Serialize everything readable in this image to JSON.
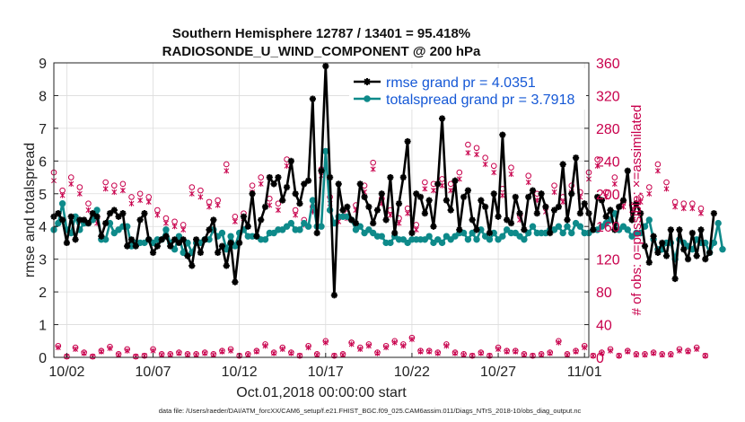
{
  "chart_data": {
    "type": "line",
    "title": "Southern Hemisphere 12787 / 13401 = 95.418%",
    "subtitle": "RADIOSONDE_U_WIND_COMPONENT @ 200 hPa",
    "xlabel": "Oct.01,2018 00:00:00 start",
    "ylabel": "rmse and totalspread",
    "ylabel_right": "# of obs: o=possible; ×=assimilated",
    "footnote": "data file: /Users/raeder/DAI/ATM_forcXX/CAM6_setup/f.e21.FHIST_BGC.f09_025.CAM6assim.011/Diags_NTrS_2018-10/obs_diag_output.nc",
    "xlim": [
      0.5,
      31.5
    ],
    "ylim": [
      0,
      9
    ],
    "ylim_right": [
      0,
      360
    ],
    "yticks": [
      "0",
      "1",
      "2",
      "3",
      "4",
      "5",
      "6",
      "7",
      "8",
      "9"
    ],
    "yticks_right": [
      "0",
      "40",
      "80",
      "120",
      "160",
      "200",
      "240",
      "280",
      "320",
      "360"
    ],
    "xticks": [
      {
        "x": 1.25,
        "label": "10/02"
      },
      {
        "x": 6.25,
        "label": "10/07"
      },
      {
        "x": 11.25,
        "label": "10/12"
      },
      {
        "x": 16.25,
        "label": "10/17"
      },
      {
        "x": 21.25,
        "label": "10/22"
      },
      {
        "x": 26.25,
        "label": "10/27"
      },
      {
        "x": 31.25,
        "label": "11/01"
      }
    ],
    "grid": true,
    "legend_position": "top-right",
    "x_start": 0.5,
    "x_step": 0.25,
    "series": [
      {
        "name": "rmse grand pr = 4.0351",
        "color": "#000000",
        "marker": "star",
        "values": [
          4.3,
          4.4,
          4.2,
          3.5,
          4.3,
          3.6,
          4.2,
          4.2,
          4.1,
          4.4,
          4.3,
          3.7,
          4.1,
          4.4,
          4.5,
          4.3,
          4.4,
          3.4,
          3.6,
          3.4,
          4.2,
          4.4,
          3.6,
          3.2,
          3.4,
          3.6,
          3.7,
          3.4,
          3.6,
          3.5,
          3.6,
          3.1,
          2.8,
          3.6,
          3.2,
          3.6,
          3.9,
          4.2,
          3.2,
          3.4,
          2.8,
          3.5,
          2.3,
          3.5,
          4.3,
          4.0,
          5.0,
          3.7,
          4.2,
          4.6,
          5.5,
          5.3,
          5.5,
          4.8,
          5.2,
          6.0,
          5.0,
          4.7,
          5.3,
          5.4,
          7.9,
          3.8,
          5.7,
          8.9,
          5.5,
          1.9,
          5.3,
          4.5,
          4.6,
          4.2,
          4.1,
          5.3,
          4.9,
          4.6,
          4.1,
          4.5,
          5.0,
          4.2,
          5.5,
          3.8,
          4.7,
          5.5,
          6.6,
          3.8,
          5.0,
          4.9,
          4.4,
          4.8,
          4.0,
          5.3,
          7.3,
          4.8,
          4.5,
          5.4,
          3.9,
          4.9,
          5.1,
          4.2,
          3.9,
          4.8,
          4.6,
          3.8,
          5.0,
          4.3,
          6.8,
          4.2,
          4.1,
          4.9,
          4.4,
          3.9,
          4.9,
          5.1,
          4.4,
          5.0,
          4.6,
          3.8,
          4.5,
          4.6,
          5.9,
          4.2,
          5.0,
          6.1,
          4.4,
          4.7,
          4.4,
          3.9,
          4.9,
          4.8,
          4.3,
          4.5,
          3.9,
          4.6,
          4.8,
          5.7,
          4.2,
          4.7,
          4.4,
          3.4,
          2.9,
          3.7,
          3.2,
          3.5,
          3.1,
          3.9,
          2.4,
          3.9,
          3.3,
          3.0,
          3.8,
          3.1,
          3.9,
          3.0,
          3.2,
          4.4
        ]
      },
      {
        "name": "totalspread grand pr = 3.7918",
        "color": "#0e8a8a",
        "marker": "circle",
        "values": [
          3.9,
          4.1,
          4.7,
          3.9,
          3.8,
          4.3,
          3.9,
          4.1,
          4.1,
          4.2,
          4.5,
          3.6,
          3.6,
          4.1,
          3.8,
          3.9,
          4.0,
          4.0,
          3.4,
          3.5,
          3.5,
          3.5,
          3.6,
          3.5,
          3.6,
          3.6,
          3.9,
          3.5,
          3.3,
          3.7,
          3.2,
          3.5,
          3.2,
          3.5,
          3.5,
          3.6,
          3.6,
          3.9,
          3.7,
          3.8,
          3.3,
          3.7,
          3.4,
          3.8,
          3.9,
          3.7,
          3.7,
          3.7,
          3.6,
          3.6,
          3.8,
          3.8,
          3.9,
          3.9,
          4.0,
          4.1,
          3.9,
          3.9,
          4.1,
          4.0,
          4.8,
          4.0,
          4.0,
          6.3,
          4.5,
          4.1,
          4.3,
          4.3,
          4.3,
          4.2,
          3.9,
          4.0,
          3.8,
          3.9,
          3.8,
          3.7,
          3.7,
          3.5,
          3.5,
          3.7,
          3.6,
          3.6,
          3.5,
          3.6,
          3.6,
          3.6,
          3.6,
          3.7,
          3.5,
          3.6,
          3.5,
          3.7,
          3.6,
          3.7,
          3.8,
          3.8,
          3.6,
          3.8,
          3.6,
          3.9,
          3.7,
          3.6,
          3.8,
          3.6,
          3.7,
          3.9,
          3.8,
          3.8,
          3.7,
          3.6,
          3.8,
          4.0,
          3.8,
          3.8,
          3.8,
          3.9,
          3.9,
          4.0,
          3.8,
          4.0,
          3.8,
          4.1,
          4.0,
          3.8,
          3.8,
          3.9,
          3.9,
          4.0,
          4.1,
          4.2,
          4.4,
          3.9,
          4.0,
          3.9,
          3.7,
          3.8,
          3.8,
          4.0,
          4.2,
          3.6,
          3.3,
          3.3,
          3.5,
          3.5,
          3.0,
          3.6,
          3.5,
          3.4,
          3.3,
          3.6,
          3.5,
          3.5,
          3.2,
          3.5,
          4.1,
          3.3
        ]
      }
    ],
    "obs_possible": {
      "name": "possible",
      "color": "#c8004c",
      "marker": "o",
      "values": [
        226,
        14,
        204,
        1,
        220,
        12,
        208,
        6,
        188,
        1,
        170,
        8,
        214,
        13,
        210,
        4,
        212,
        10,
        196,
        1,
        200,
        2,
        196,
        10,
        180,
        4,
        170,
        4,
        166,
        6,
        162,
        4,
        208,
        4,
        204,
        6,
        190,
        4,
        192,
        8,
        236,
        10,
        172,
        2,
        176,
        4,
        210,
        8,
        220,
        16,
        194,
        6,
        188,
        12,
        242,
        6,
        180,
        2,
        168,
        14,
        184,
        4,
        230,
        20,
        196,
        2,
        172,
        4,
        176,
        18,
        186,
        12,
        210,
        16,
        238,
        6,
        194,
        14,
        180,
        20,
        170,
        16,
        182,
        24,
        162,
        8,
        214,
        8,
        212,
        6,
        218,
        16,
        212,
        6,
        226,
        4,
        260,
        2,
        256,
        6,
        244,
        2,
        234,
        12,
        206,
        8,
        232,
        8,
        174,
        4,
        222,
        2,
        200,
        4,
        184,
        6,
        210,
        20,
        196,
        4,
        210,
        8,
        202,
        14,
        226,
        2,
        242,
        6,
        202,
        10,
        220,
        2,
        190,
        8,
        186,
        4,
        196,
        4,
        208,
        6,
        236,
        4,
        214,
        4,
        190,
        10,
        188,
        8,
        188,
        12,
        182,
        2
      ]
    },
    "obs_assimilated": {
      "name": "assimilated",
      "color": "#c8004c",
      "marker": "x",
      "values": [
        216,
        12,
        198,
        1,
        212,
        10,
        200,
        5,
        180,
        1,
        164,
        7,
        206,
        11,
        202,
        3,
        204,
        8,
        188,
        1,
        192,
        2,
        190,
        8,
        174,
        3,
        164,
        3,
        160,
        5,
        156,
        3,
        200,
        3,
        196,
        5,
        184,
        3,
        186,
        7,
        228,
        8,
        166,
        2,
        170,
        3,
        202,
        7,
        212,
        14,
        186,
        5,
        180,
        10,
        234,
        5,
        174,
        2,
        162,
        12,
        178,
        3,
        222,
        18,
        188,
        2,
        166,
        3,
        170,
        16,
        180,
        10,
        202,
        14,
        230,
        5,
        188,
        12,
        174,
        18,
        164,
        14,
        176,
        22,
        156,
        7,
        206,
        7,
        204,
        5,
        210,
        14,
        204,
        5,
        218,
        3,
        250,
        2,
        248,
        5,
        236,
        2,
        226,
        10,
        198,
        7,
        224,
        7,
        168,
        3,
        214,
        2,
        192,
        3,
        178,
        5,
        202,
        18,
        190,
        3,
        202,
        7,
        196,
        12,
        218,
        2,
        234,
        5,
        196,
        8,
        212,
        2,
        184,
        7,
        180,
        3,
        190,
        3,
        200,
        5,
        228,
        3,
        206,
        3,
        184,
        8,
        182,
        7,
        182,
        10,
        176,
        2
      ]
    }
  }
}
